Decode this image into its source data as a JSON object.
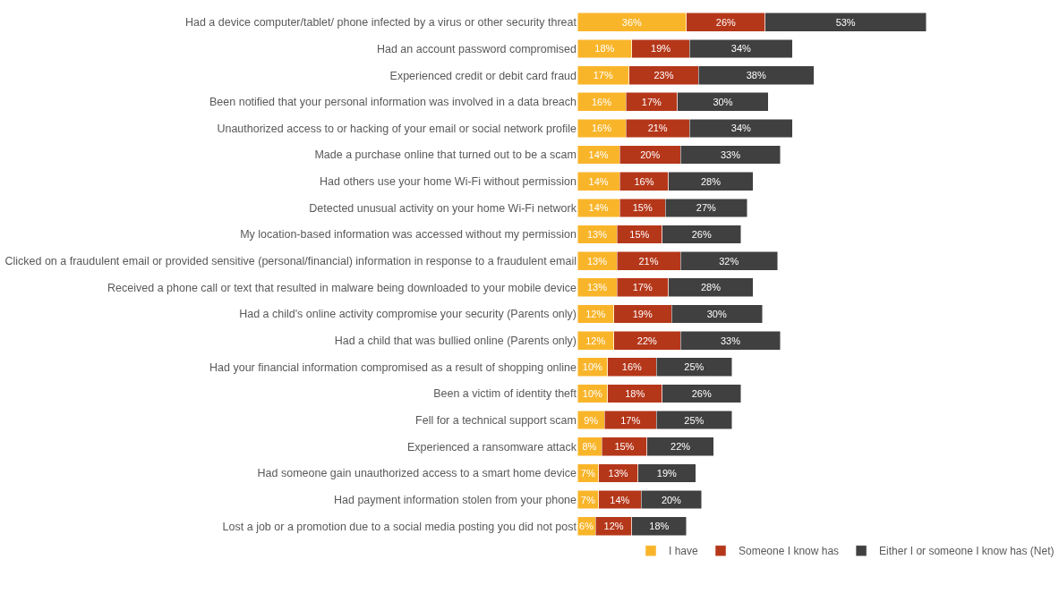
{
  "chart_data": {
    "type": "bar",
    "orientation": "horizontal",
    "stacked": true,
    "legend": "bottom",
    "categories": [
      "Had a device computer/tablet/ phone infected by a virus or other security threat",
      "Had an account password compromised",
      "Experienced credit or debit card fraud",
      "Been notified that your personal information was involved in a data breach",
      "Unauthorized access to or hacking of your email or social network profile",
      "Made a purchase online that turned out to be a scam",
      "Had others use your home Wi-Fi without permission",
      "Detected unusual activity on your home Wi-Fi network",
      "My location-based information was accessed without my permission",
      "Clicked on a fraudulent email or provided sensitive (personal/financial) information in response to a fraudulent email",
      "Received a phone call or text that resulted in malware being downloaded to your mobile device",
      "Had a child's online activity compromise your security (Parents only)",
      "Had a child that was bullied online (Parents only)",
      "Had your financial information compromised as a result of shopping online",
      "Been a victim of identity theft",
      "Fell for a technical support scam",
      "Experienced a ransomware attack",
      "Had someone gain unauthorized access to a smart home device",
      "Had payment information stolen from your phone",
      "Lost a job or a promotion due to a social media posting you did not post"
    ],
    "series": [
      {
        "name": "I have",
        "color": "#f9b52a",
        "values": [
          36,
          18,
          17,
          16,
          16,
          14,
          14,
          14,
          13,
          13,
          13,
          12,
          12,
          10,
          10,
          9,
          8,
          7,
          7,
          6
        ],
        "value_labels": [
          "36%",
          "18%",
          "17%",
          "16%",
          "16%",
          "14%",
          "14%",
          "14%",
          "13%",
          "13%",
          "13%",
          "12%",
          "12%",
          "10%",
          "10%",
          "9%",
          "8%",
          "7%",
          "7%",
          "6%"
        ]
      },
      {
        "name": "Someone I know has",
        "color": "#b5371a",
        "values": [
          26,
          19,
          23,
          17,
          21,
          20,
          16,
          15,
          15,
          21,
          17,
          19,
          22,
          16,
          18,
          17,
          15,
          13,
          14,
          12
        ],
        "value_labels": [
          "26%",
          "19%",
          "23%",
          "17%",
          "21%",
          "20%",
          "16%",
          "15%",
          "15%",
          "21%",
          "17%",
          "19%",
          "22%",
          "16%",
          "18%",
          "17%",
          "15%",
          "13%",
          "14%",
          "12%"
        ]
      },
      {
        "name": "Either I or someone I know has (Net)",
        "color": "#404040",
        "values": [
          53,
          34,
          38,
          30,
          34,
          33,
          28,
          27,
          26,
          32,
          28,
          30,
          33,
          25,
          26,
          25,
          22,
          19,
          20,
          18
        ],
        "value_labels": [
          "53%",
          "34%",
          "38%",
          "30%",
          "34%",
          "33%",
          "28%",
          "27%",
          "26%",
          "32%",
          "28%",
          "30%",
          "33%",
          "25%",
          "26%",
          "25%",
          "22%",
          "19%",
          "20%",
          "18%"
        ]
      }
    ]
  }
}
